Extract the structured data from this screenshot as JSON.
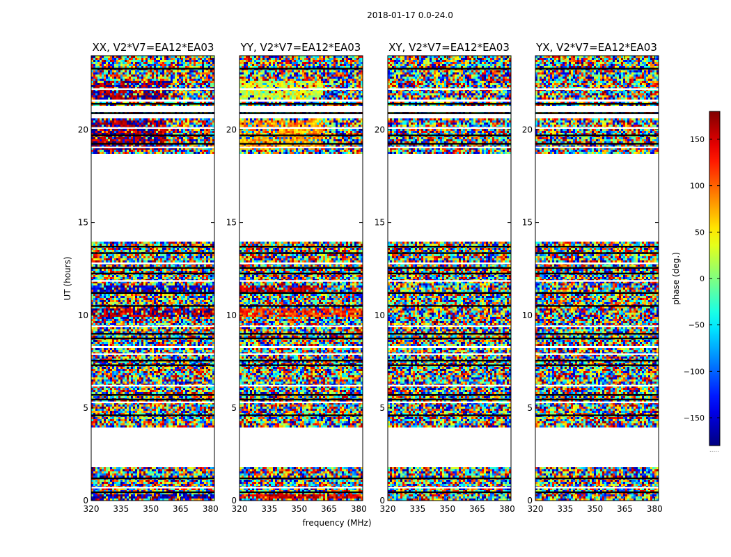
{
  "chart_data": {
    "type": "heatmap",
    "suptitle": "2018-01-17 0.0-24.0",
    "xlabel": "frequency (MHz)",
    "ylabel": "UT (hours)",
    "xlim": [
      320,
      382
    ],
    "ylim": [
      0,
      24
    ],
    "xticks": [
      320,
      335,
      350,
      365,
      380
    ],
    "yticks": [
      0,
      5,
      10,
      15,
      20
    ],
    "panels": [
      {
        "title": "XX, V2*V7=EA12*EA03",
        "pol": "XX",
        "coherent": [
          {
            "from": 0.15,
            "to": 0.35,
            "phase": -160,
            "f_end": 382
          },
          {
            "from": 9.9,
            "to": 10.4,
            "phase": 165,
            "f_end": 382
          },
          {
            "from": 11.1,
            "to": 11.6,
            "phase": -150,
            "f_end": 382
          },
          {
            "from": 18.9,
            "to": 20.5,
            "phase": 175,
            "f_end": 358
          },
          {
            "from": 21.6,
            "to": 22.6,
            "phase": 175,
            "f_end": 360
          }
        ]
      },
      {
        "title": "YY, V2*V7=EA12*EA03",
        "pol": "YY",
        "coherent": [
          {
            "from": 0.15,
            "to": 0.35,
            "phase": 150,
            "f_end": 382
          },
          {
            "from": 9.9,
            "to": 10.4,
            "phase": 120,
            "f_end": 382
          },
          {
            "from": 11.1,
            "to": 11.6,
            "phase": 160,
            "f_end": 360
          },
          {
            "from": 18.9,
            "to": 20.5,
            "phase": 80,
            "f_end": 362
          },
          {
            "from": 21.6,
            "to": 22.6,
            "phase": 30,
            "f_end": 362
          }
        ]
      },
      {
        "title": "XY, V2*V7=EA12*EA03",
        "pol": "XY",
        "coherent": []
      },
      {
        "title": "YX, V2*V7=EA12*EA03",
        "pol": "YX",
        "coherent": []
      }
    ],
    "data_bands_ut": [
      [
        0.0,
        1.8
      ],
      [
        4.0,
        8.2
      ],
      [
        8.3,
        14.0
      ],
      [
        18.7,
        20.6
      ],
      [
        20.8,
        21.0
      ],
      [
        21.3,
        21.5
      ],
      [
        21.6,
        24.0
      ]
    ],
    "flagged_rows_ut": [
      0.45,
      0.7,
      1.2,
      4.6,
      5.3,
      5.45,
      5.7,
      6.2,
      7.3,
      7.55,
      7.9,
      8.75,
      9.0,
      9.4,
      10.5,
      11.2,
      11.85,
      12.25,
      12.55,
      12.8,
      13.35,
      13.7,
      19.05,
      19.25,
      19.7,
      20.1,
      20.9,
      21.4,
      22.2,
      23.3
    ],
    "colorbar": {
      "label": "phase (deg.)",
      "range": [
        -180,
        180
      ],
      "ticks": [
        -150,
        -100,
        -50,
        0,
        50,
        100,
        150
      ],
      "colormap": "jet",
      "footnote": "....."
    }
  }
}
